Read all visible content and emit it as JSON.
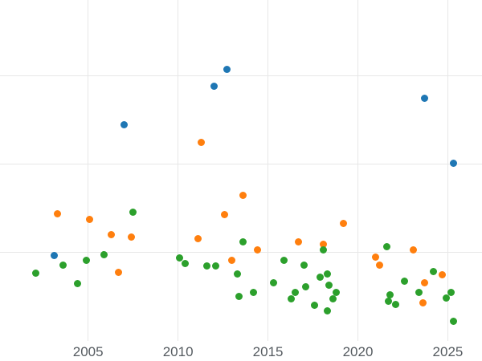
{
  "chart_data": {
    "type": "scatter",
    "title": "",
    "xlabel": "",
    "ylabel": "",
    "grid": true,
    "legend": "none",
    "x_ticks": [
      2005,
      2010,
      2015,
      2020,
      2025
    ],
    "xlim": [
      2000.1,
      2026.9
    ],
    "ylim": [
      0,
      3.86
    ],
    "y_gridlines": [
      1,
      2,
      3
    ],
    "series": [
      {
        "name": "blue",
        "color": "#1f77b4",
        "points": [
          [
            2003.1,
            0.97
          ],
          [
            2007.0,
            2.45
          ],
          [
            2012.0,
            2.88
          ],
          [
            2012.7,
            3.07
          ],
          [
            2023.7,
            2.75
          ],
          [
            2025.3,
            2.01
          ]
        ]
      },
      {
        "name": "orange",
        "color": "#ff7f0e",
        "points": [
          [
            2003.3,
            1.44
          ],
          [
            2005.1,
            1.38
          ],
          [
            2006.3,
            1.2
          ],
          [
            2006.7,
            0.78
          ],
          [
            2007.4,
            1.18
          ],
          [
            2011.1,
            1.16
          ],
          [
            2011.3,
            2.25
          ],
          [
            2012.6,
            1.43
          ],
          [
            2013.0,
            0.91
          ],
          [
            2013.6,
            1.65
          ],
          [
            2014.4,
            1.03
          ],
          [
            2016.7,
            1.12
          ],
          [
            2018.1,
            1.09
          ],
          [
            2019.2,
            1.33
          ],
          [
            2021.0,
            0.95
          ],
          [
            2021.2,
            0.86
          ],
          [
            2023.1,
            1.03
          ],
          [
            2023.6,
            0.43
          ],
          [
            2023.7,
            0.66
          ],
          [
            2024.7,
            0.75
          ]
        ]
      },
      {
        "name": "green",
        "color": "#2ca02c",
        "points": [
          [
            2002.1,
            0.77
          ],
          [
            2003.6,
            0.86
          ],
          [
            2004.4,
            0.65
          ],
          [
            2004.9,
            0.91
          ],
          [
            2005.9,
            0.98
          ],
          [
            2007.5,
            1.46
          ],
          [
            2010.1,
            0.94
          ],
          [
            2010.4,
            0.88
          ],
          [
            2011.6,
            0.85
          ],
          [
            2012.1,
            0.85
          ],
          [
            2013.3,
            0.76
          ],
          [
            2013.4,
            0.5
          ],
          [
            2013.6,
            1.12
          ],
          [
            2014.2,
            0.55
          ],
          [
            2015.3,
            0.66
          ],
          [
            2015.9,
            0.91
          ],
          [
            2016.3,
            0.48
          ],
          [
            2016.5,
            0.55
          ],
          [
            2017.0,
            0.86
          ],
          [
            2017.1,
            0.61
          ],
          [
            2017.6,
            0.4
          ],
          [
            2017.9,
            0.72
          ],
          [
            2018.1,
            1.03
          ],
          [
            2018.3,
            0.76
          ],
          [
            2018.3,
            0.34
          ],
          [
            2018.4,
            0.63
          ],
          [
            2018.6,
            0.48
          ],
          [
            2018.8,
            0.55
          ],
          [
            2021.6,
            1.07
          ],
          [
            2021.7,
            0.45
          ],
          [
            2021.8,
            0.52
          ],
          [
            2022.1,
            0.41
          ],
          [
            2022.6,
            0.68
          ],
          [
            2023.4,
            0.55
          ],
          [
            2024.2,
            0.79
          ],
          [
            2024.9,
            0.49
          ],
          [
            2025.2,
            0.55
          ],
          [
            2025.3,
            0.22
          ]
        ]
      }
    ]
  }
}
